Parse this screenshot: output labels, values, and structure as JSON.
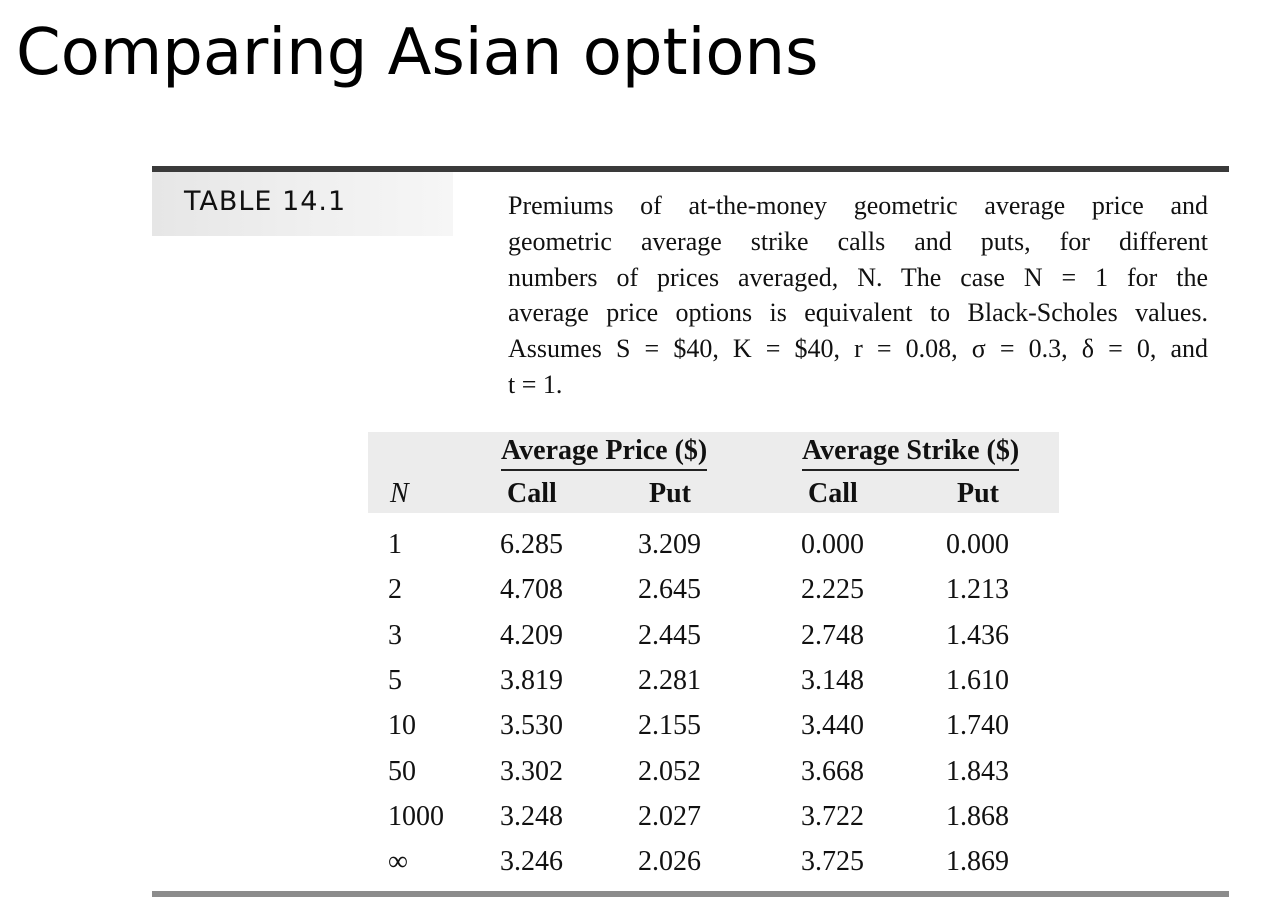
{
  "slide": {
    "title": "Comparing Asian options"
  },
  "table": {
    "label": "TABLE 14.1",
    "caption_lines": [
      "Premiums of at-the-money geometric average price and",
      "geometric average strike calls and puts, for different",
      "numbers of prices averaged, N. The case N = 1 for the",
      "average price options is equivalent to Black-Scholes values.",
      "Assumes S = $40, K = $40, r = 0.08, σ = 0.3, δ = 0, and",
      "t = 1."
    ],
    "group_headers": [
      "Average Price ($)",
      "Average Strike ($)"
    ],
    "column_headers": [
      "N",
      "Call",
      "Put",
      "Call",
      "Put"
    ],
    "rows": [
      [
        "1",
        "6.285",
        "3.209",
        "0.000",
        "0.000"
      ],
      [
        "2",
        "4.708",
        "2.645",
        "2.225",
        "1.213"
      ],
      [
        "3",
        "4.209",
        "2.445",
        "2.748",
        "1.436"
      ],
      [
        "5",
        "3.819",
        "2.281",
        "3.148",
        "1.610"
      ],
      [
        "10",
        "3.530",
        "2.155",
        "3.440",
        "1.740"
      ],
      [
        "50",
        "3.302",
        "2.052",
        "3.668",
        "1.843"
      ],
      [
        "1000",
        "3.248",
        "2.027",
        "3.722",
        "1.868"
      ],
      [
        "∞",
        "3.246",
        "2.026",
        "3.725",
        "1.869"
      ]
    ]
  }
}
